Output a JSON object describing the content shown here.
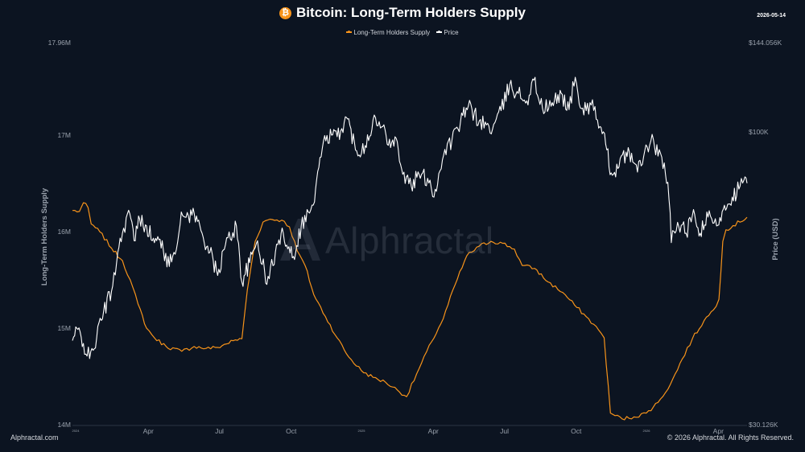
{
  "header": {
    "title": "Bitcoin: Long-Term Holders Supply",
    "icon": "bitcoin-icon",
    "icon_glyph": "₿",
    "date": "2026-05-14"
  },
  "watermark": {
    "text": "Alphractal"
  },
  "footer": {
    "left": "Alphractal.com",
    "right": "© 2026 Alphractal. All Rights Reserved."
  },
  "colors": {
    "background": "#0c1421",
    "lths": "#f7931a",
    "price": "#ffffff",
    "axis_text": "#9aa2ad"
  },
  "chart_data": {
    "type": "line",
    "y_scale_left": "linear",
    "y_scale_right": "log",
    "left_axis": {
      "label": "Long-Term Holders Supply",
      "ticks": [
        "17.96M",
        "17M",
        "16M",
        "15M",
        "14M"
      ],
      "range": [
        14000000,
        17960000
      ]
    },
    "right_axis": {
      "label": "Price (USD)",
      "ticks": [
        "$144.056K",
        "$100K",
        "$30.126K"
      ],
      "range": [
        30126,
        144056
      ]
    },
    "x_axis": {
      "range": [
        "2024-01-01",
        "2026-05-14"
      ],
      "ticks": [
        {
          "date": "2024-01-01",
          "label": "2024",
          "small": true
        },
        {
          "date": "2024-04-01",
          "label": "Apr",
          "small": false
        },
        {
          "date": "2024-07-01",
          "label": "Jul",
          "small": false
        },
        {
          "date": "2024-10-01",
          "label": "Oct",
          "small": false
        },
        {
          "date": "2025-01-01",
          "label": "2025",
          "small": true
        },
        {
          "date": "2025-04-01",
          "label": "Apr",
          "small": false
        },
        {
          "date": "2025-07-01",
          "label": "Jul",
          "small": false
        },
        {
          "date": "2025-10-01",
          "label": "Oct",
          "small": false
        },
        {
          "date": "2026-01-01",
          "label": "2026",
          "small": true
        },
        {
          "date": "2026-04-01",
          "label": "Apr",
          "small": false
        }
      ]
    },
    "legend_position": "top-center",
    "grid": false,
    "series": [
      {
        "name": "Long-Term Holders Supply",
        "axis": "left",
        "points": [
          [
            "2024-01-01",
            16220000
          ],
          [
            "2024-01-10",
            16210000
          ],
          [
            "2024-01-15",
            16300000
          ],
          [
            "2024-01-21",
            16250000
          ],
          [
            "2024-01-25",
            16080000
          ],
          [
            "2024-02-05",
            16000000
          ],
          [
            "2024-02-20",
            15830000
          ],
          [
            "2024-03-05",
            15700000
          ],
          [
            "2024-03-15",
            15500000
          ],
          [
            "2024-03-25",
            15250000
          ],
          [
            "2024-04-05",
            15000000
          ],
          [
            "2024-04-15",
            14900000
          ],
          [
            "2024-04-30",
            14810000
          ],
          [
            "2024-05-20",
            14760000
          ],
          [
            "2024-06-05",
            14810000
          ],
          [
            "2024-06-20",
            14790000
          ],
          [
            "2024-07-05",
            14800000
          ],
          [
            "2024-07-25",
            14870000
          ],
          [
            "2024-08-05",
            14890000
          ],
          [
            "2024-08-12",
            15400000
          ],
          [
            "2024-08-22",
            15900000
          ],
          [
            "2024-09-01",
            16100000
          ],
          [
            "2024-09-10",
            16130000
          ],
          [
            "2024-09-25",
            16120000
          ],
          [
            "2024-10-05",
            16050000
          ],
          [
            "2024-10-15",
            15800000
          ],
          [
            "2024-10-25",
            15650000
          ],
          [
            "2024-11-05",
            15350000
          ],
          [
            "2024-11-20",
            15120000
          ],
          [
            "2024-12-05",
            14900000
          ],
          [
            "2024-12-20",
            14700000
          ],
          [
            "2025-01-05",
            14560000
          ],
          [
            "2025-01-20",
            14490000
          ],
          [
            "2025-02-05",
            14440000
          ],
          [
            "2025-02-20",
            14360000
          ],
          [
            "2025-03-04",
            14290000
          ],
          [
            "2025-03-20",
            14580000
          ],
          [
            "2025-04-05",
            14860000
          ],
          [
            "2025-04-20",
            15100000
          ],
          [
            "2025-05-05",
            15450000
          ],
          [
            "2025-05-20",
            15750000
          ],
          [
            "2025-06-05",
            15850000
          ],
          [
            "2025-06-20",
            15900000
          ],
          [
            "2025-07-05",
            15880000
          ],
          [
            "2025-07-20",
            15820000
          ],
          [
            "2025-07-30",
            15650000
          ],
          [
            "2025-08-15",
            15620000
          ],
          [
            "2025-09-01",
            15480000
          ],
          [
            "2025-09-20",
            15370000
          ],
          [
            "2025-10-05",
            15240000
          ],
          [
            "2025-10-20",
            15120000
          ],
          [
            "2025-11-05",
            14980000
          ],
          [
            "2025-11-12",
            14900000
          ],
          [
            "2025-11-20",
            14120000
          ],
          [
            "2025-12-05",
            14060000
          ],
          [
            "2025-12-20",
            14080000
          ],
          [
            "2026-01-05",
            14120000
          ],
          [
            "2026-01-20",
            14230000
          ],
          [
            "2026-02-05",
            14420000
          ],
          [
            "2026-02-20",
            14680000
          ],
          [
            "2026-03-05",
            14890000
          ],
          [
            "2026-03-20",
            15080000
          ],
          [
            "2026-04-01",
            15190000
          ],
          [
            "2026-04-08",
            15300000
          ],
          [
            "2026-04-13",
            15900000
          ],
          [
            "2026-04-17",
            16020000
          ],
          [
            "2026-05-14",
            16150000
          ]
        ]
      },
      {
        "name": "Price",
        "axis": "right",
        "points": [
          [
            "2024-01-01",
            42500
          ],
          [
            "2024-01-08",
            44500
          ],
          [
            "2024-01-15",
            42000
          ],
          [
            "2024-01-23",
            39500
          ],
          [
            "2024-02-01",
            43000
          ],
          [
            "2024-02-10",
            48000
          ],
          [
            "2024-02-20",
            52000
          ],
          [
            "2024-02-28",
            61000
          ],
          [
            "2024-03-05",
            66000
          ],
          [
            "2024-03-13",
            72500
          ],
          [
            "2024-03-20",
            64000
          ],
          [
            "2024-03-27",
            70000
          ],
          [
            "2024-04-05",
            68000
          ],
          [
            "2024-04-15",
            63500
          ],
          [
            "2024-04-25",
            64000
          ],
          [
            "2024-05-01",
            57500
          ],
          [
            "2024-05-10",
            61000
          ],
          [
            "2024-05-21",
            71000
          ],
          [
            "2024-06-05",
            71500
          ],
          [
            "2024-06-15",
            66000
          ],
          [
            "2024-06-25",
            61000
          ],
          [
            "2024-07-05",
            55500
          ],
          [
            "2024-07-15",
            63000
          ],
          [
            "2024-07-29",
            68000
          ],
          [
            "2024-08-05",
            54000
          ],
          [
            "2024-08-15",
            58500
          ],
          [
            "2024-08-25",
            64000
          ],
          [
            "2024-09-06",
            53500
          ],
          [
            "2024-09-20",
            63000
          ],
          [
            "2024-09-27",
            66000
          ],
          [
            "2024-10-10",
            60000
          ],
          [
            "2024-10-20",
            68000
          ],
          [
            "2024-10-29",
            72000
          ],
          [
            "2024-11-06",
            75000
          ],
          [
            "2024-11-13",
            90000
          ],
          [
            "2024-11-22",
            98500
          ],
          [
            "2024-12-05",
            98000
          ],
          [
            "2024-12-17",
            106000
          ],
          [
            "2024-12-30",
            92500
          ],
          [
            "2025-01-10",
            94500
          ],
          [
            "2025-01-20",
            105000
          ],
          [
            "2025-01-31",
            102000
          ],
          [
            "2025-02-10",
            97000
          ],
          [
            "2025-02-20",
            96000
          ],
          [
            "2025-02-27",
            84000
          ],
          [
            "2025-03-10",
            80000
          ],
          [
            "2025-03-20",
            84000
          ],
          [
            "2025-04-03",
            82000
          ],
          [
            "2025-04-08",
            76500
          ],
          [
            "2025-04-22",
            93000
          ],
          [
            "2025-05-01",
            96500
          ],
          [
            "2025-05-12",
            104000
          ],
          [
            "2025-05-22",
            111000
          ],
          [
            "2025-06-05",
            104500
          ],
          [
            "2025-06-22",
            101000
          ],
          [
            "2025-07-03",
            109000
          ],
          [
            "2025-07-14",
            121000
          ],
          [
            "2025-07-25",
            117000
          ],
          [
            "2025-08-05",
            113500
          ],
          [
            "2025-08-14",
            123500
          ],
          [
            "2025-08-25",
            110000
          ],
          [
            "2025-09-05",
            111000
          ],
          [
            "2025-09-18",
            117000
          ],
          [
            "2025-09-28",
            109500
          ],
          [
            "2025-10-06",
            125000
          ],
          [
            "2025-10-11",
            112000
          ],
          [
            "2025-10-20",
            109000
          ],
          [
            "2025-10-28",
            114000
          ],
          [
            "2025-11-05",
            101500
          ],
          [
            "2025-11-14",
            95000
          ],
          [
            "2025-11-21",
            84500
          ],
          [
            "2025-12-01",
            86500
          ],
          [
            "2025-12-10",
            92000
          ],
          [
            "2025-12-20",
            88000
          ],
          [
            "2025-12-31",
            87500
          ],
          [
            "2026-01-06",
            94000
          ],
          [
            "2026-01-14",
            97000
          ],
          [
            "2026-01-20",
            90500
          ],
          [
            "2026-01-28",
            88000
          ],
          [
            "2026-02-03",
            76000
          ],
          [
            "2026-02-06",
            63500
          ],
          [
            "2026-02-14",
            69000
          ],
          [
            "2026-02-25",
            66000
          ],
          [
            "2026-03-05",
            71000
          ],
          [
            "2026-03-15",
            66000
          ],
          [
            "2026-03-25",
            70500
          ],
          [
            "2026-04-05",
            68000
          ],
          [
            "2026-04-15",
            74000
          ],
          [
            "2026-04-25",
            76500
          ],
          [
            "2026-05-05",
            80000
          ],
          [
            "2026-05-10",
            82000
          ],
          [
            "2026-05-14",
            81000
          ]
        ]
      }
    ]
  }
}
